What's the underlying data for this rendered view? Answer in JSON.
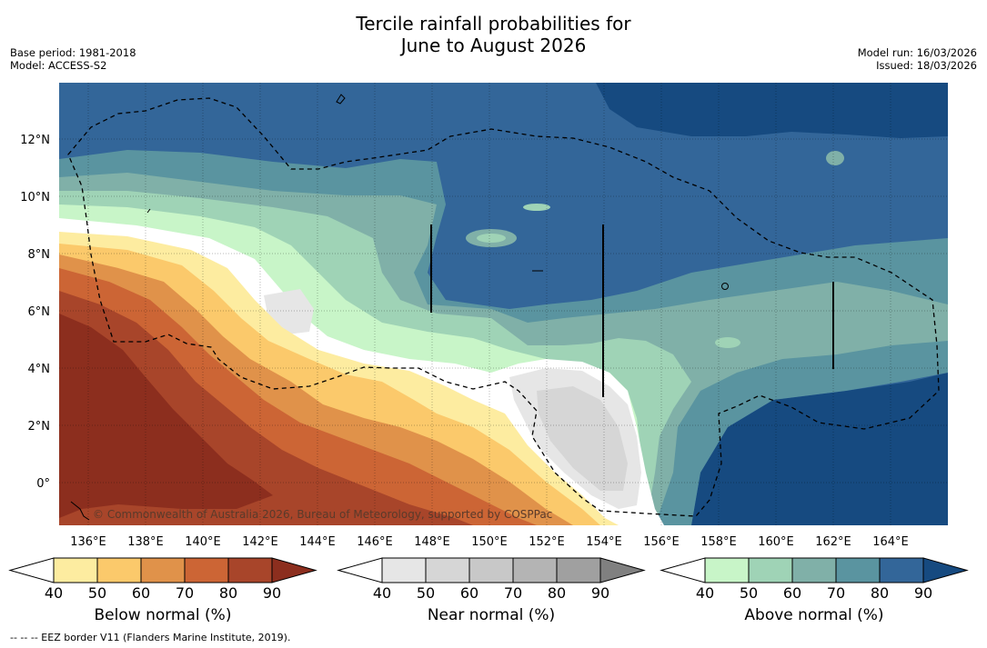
{
  "header": {
    "title_line1": "Tercile rainfall probabilities for",
    "title_line2": "June to August 2026",
    "base_period": "Base period: 1981-2018",
    "model": "Model: ACCESS-S2",
    "model_run": "Model run: 16/03/2026",
    "issued": "Issued: 18/03/2026"
  },
  "map": {
    "lon_ticks": [
      "136°E",
      "138°E",
      "140°E",
      "142°E",
      "144°E",
      "146°E",
      "148°E",
      "150°E",
      "152°E",
      "154°E",
      "156°E",
      "158°E",
      "160°E",
      "162°E",
      "164°E"
    ],
    "lat_ticks": [
      "12°N",
      "10°N",
      "8°N",
      "6°N",
      "4°N",
      "2°N",
      "0°"
    ],
    "credit": "© Commonwealth of Australia 2026, Bureau of Meteorology, supported by COSPPac"
  },
  "colorbars": {
    "below": {
      "label": "Below normal (%)",
      "ticks": [
        "40",
        "50",
        "60",
        "70",
        "80",
        "90"
      ],
      "colors": [
        "#ffffff",
        "#fdeca0",
        "#fbc96b",
        "#e0924a",
        "#cc6535",
        "#a8452a",
        "#8c2e1e"
      ]
    },
    "near": {
      "label": "Near normal (%)",
      "ticks": [
        "40",
        "50",
        "60",
        "70",
        "80",
        "90"
      ],
      "colors": [
        "#ffffff",
        "#e6e6e6",
        "#d6d6d6",
        "#c8c8c8",
        "#b4b4b4",
        "#a0a0a0",
        "#808080"
      ]
    },
    "above": {
      "label": "Above normal (%)",
      "ticks": [
        "40",
        "50",
        "60",
        "70",
        "80",
        "90"
      ],
      "colors": [
        "#ffffff",
        "#c8f5c8",
        "#9fd3b6",
        "#80b0a8",
        "#5a94a0",
        "#336699",
        "#164a80"
      ]
    }
  },
  "footnote": "-- -- -- EEZ border V11 (Flanders Marine Institute, 2019)."
}
